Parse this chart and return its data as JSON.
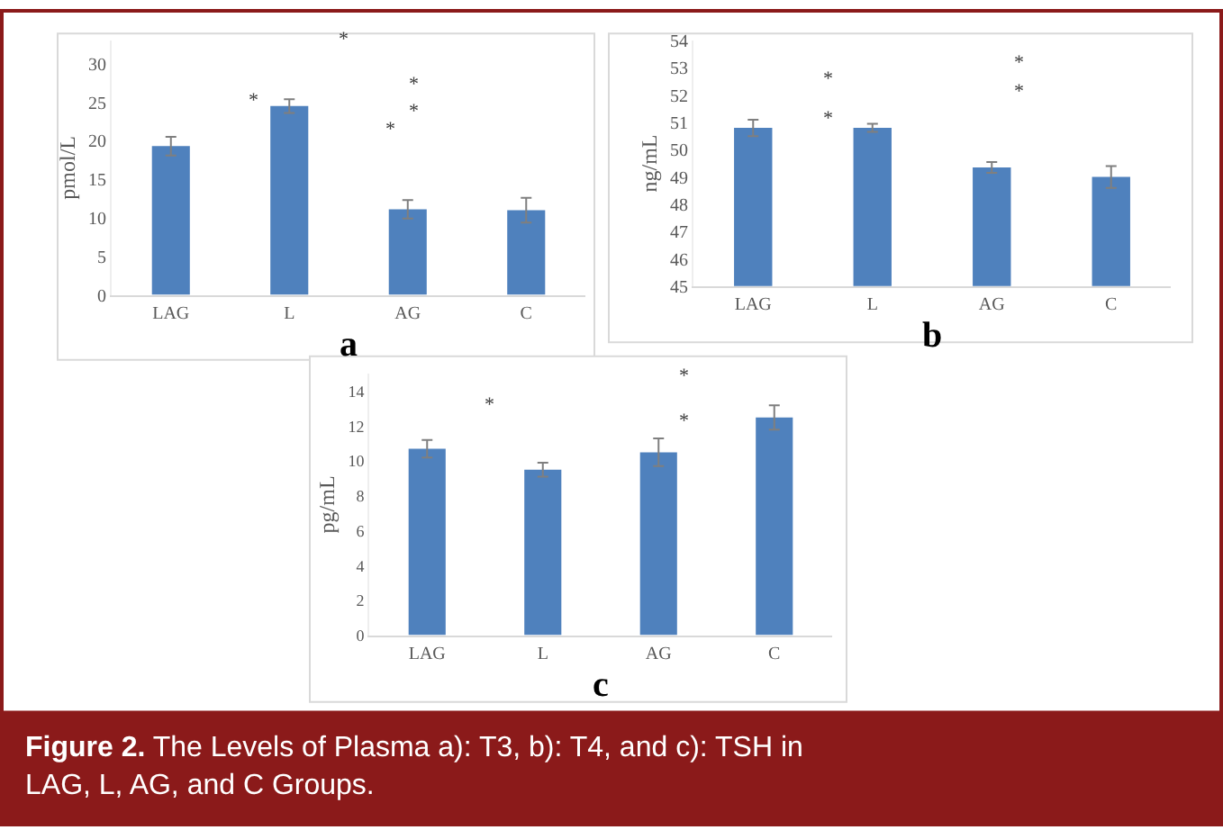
{
  "chart_data": [
    {
      "type": "bar",
      "categories": [
        "LAG",
        "L",
        "AG",
        "C"
      ],
      "ylabel": "pmol/L",
      "xlabel": "a",
      "ylim": [
        0,
        33
      ],
      "yticks": [
        0,
        5,
        10,
        15,
        20,
        25,
        30
      ],
      "grid": false,
      "legend": false,
      "series": [
        {
          "color": "#4f81bd",
          "values": [
            19.3,
            24.5,
            11.1,
            11.0
          ],
          "errors": [
            1.2,
            0.9,
            1.2,
            1.6
          ]
        }
      ],
      "annotations": [
        "*",
        "*",
        "*",
        "*",
        "*"
      ]
    },
    {
      "type": "bar",
      "categories": [
        "LAG",
        "L",
        "AG",
        "C"
      ],
      "ylabel": "ng/mL",
      "xlabel": "b",
      "ylim": [
        45,
        54
      ],
      "yticks": [
        45,
        46,
        47,
        48,
        49,
        50,
        51,
        52,
        53,
        54
      ],
      "grid": false,
      "legend": false,
      "series": [
        {
          "color": "#4f81bd",
          "values": [
            50.8,
            50.8,
            49.35,
            49.0
          ],
          "errors": [
            0.3,
            0.15,
            0.2,
            0.4
          ]
        }
      ],
      "annotations": [
        "*",
        "*",
        "*",
        "*"
      ]
    },
    {
      "type": "bar",
      "categories": [
        "LAG",
        "L",
        "AG",
        "C"
      ],
      "ylabel": "pg/mL",
      "xlabel": "c",
      "ylim": [
        0,
        15
      ],
      "yticks": [
        0,
        2,
        4,
        6,
        8,
        10,
        12,
        14
      ],
      "grid": false,
      "legend": false,
      "series": [
        {
          "color": "#4f81bd",
          "values": [
            10.7,
            9.5,
            10.5,
            12.5
          ],
          "errors": [
            0.5,
            0.4,
            0.8,
            0.7
          ]
        }
      ],
      "annotations": [
        "*",
        "*",
        "*",
        "Figure 2.",
        "The Levels of Plasma a): T3, b): T4, and c): TSH in LAG, L, AG, and C Groups."
      ]
    }
  ]
}
